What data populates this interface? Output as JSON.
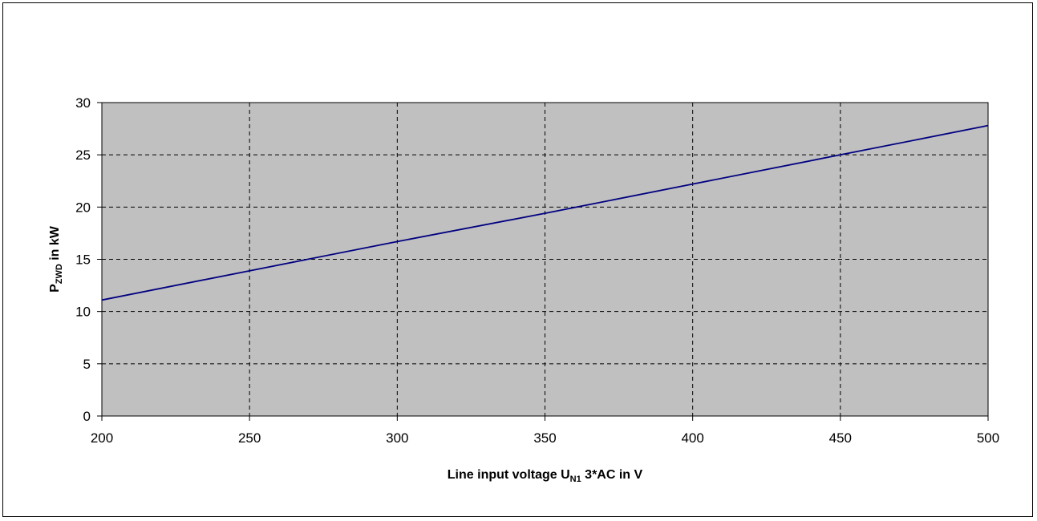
{
  "chart_data": {
    "type": "line",
    "title": "",
    "xlabel": {
      "main": "Line input voltage U",
      "sub": "N1",
      "suffix": " 3*AC in V"
    },
    "ylabel": {
      "main": "P",
      "sub": "ZWD",
      "suffix": " in kW"
    },
    "xlim": [
      200,
      500
    ],
    "ylim": [
      0,
      30
    ],
    "x_ticks": [
      200,
      250,
      300,
      350,
      400,
      450,
      500
    ],
    "y_ticks": [
      0,
      5,
      10,
      15,
      20,
      25,
      30
    ],
    "grid": true,
    "grid_style": "dashed",
    "plot_background": "#c0c0c0",
    "series": [
      {
        "color": "#000080",
        "x": [
          200,
          250,
          300,
          350,
          400,
          450,
          500
        ],
        "y": [
          11.1,
          13.9,
          16.7,
          19.4,
          22.2,
          25.0,
          27.8
        ]
      }
    ]
  }
}
